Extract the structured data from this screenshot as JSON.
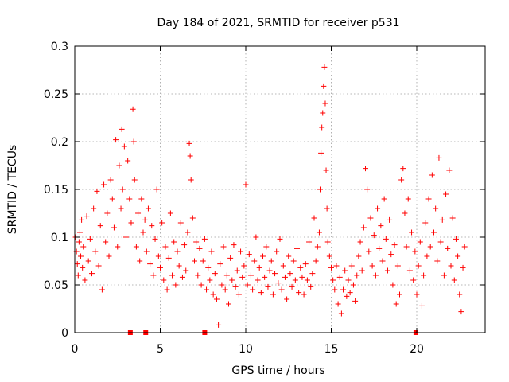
{
  "chart_data": {
    "type": "scatter",
    "title": "Day 184 of 2021, SRMTID for receiver p531",
    "xlabel": "GPS time / hours",
    "ylabel": "SRMTID / TECUs",
    "xlim": [
      0,
      24
    ],
    "ylim": [
      0,
      0.3
    ],
    "xticks": [
      0,
      5,
      10,
      15,
      20
    ],
    "xtick_labels": [
      "0",
      "5",
      "10",
      "15",
      "20"
    ],
    "yticks": [
      0,
      0.05,
      0.1,
      0.15,
      0.2,
      0.25,
      0.3
    ],
    "ytick_labels": [
      "0",
      "0.05",
      "0.1",
      "0.15",
      "0.2",
      "0.25",
      "0.3"
    ],
    "grid": true,
    "legend": "none",
    "marker": "plus",
    "color": "#ff0000",
    "series": [
      {
        "name": "SRMTID",
        "points": [
          [
            0.05,
            0.1
          ],
          [
            0.1,
            0.085
          ],
          [
            0.15,
            0.072
          ],
          [
            0.2,
            0.06
          ],
          [
            0.25,
            0.095
          ],
          [
            0.3,
            0.105
          ],
          [
            0.35,
            0.08
          ],
          [
            0.4,
            0.118
          ],
          [
            0.45,
            0.068
          ],
          [
            0.5,
            0.09
          ],
          [
            0.6,
            0.055
          ],
          [
            0.7,
            0.122
          ],
          [
            0.8,
            0.075
          ],
          [
            0.9,
            0.098
          ],
          [
            1.0,
            0.062
          ],
          [
            1.1,
            0.13
          ],
          [
            1.2,
            0.085
          ],
          [
            1.3,
            0.148
          ],
          [
            1.4,
            0.07
          ],
          [
            1.5,
            0.112
          ],
          [
            1.6,
            0.045
          ],
          [
            1.7,
            0.155
          ],
          [
            1.8,
            0.095
          ],
          [
            1.9,
            0.125
          ],
          [
            2.0,
            0.08
          ],
          [
            2.1,
            0.16
          ],
          [
            2.2,
            0.14
          ],
          [
            2.3,
            0.11
          ],
          [
            2.4,
            0.202
          ],
          [
            2.5,
            0.09
          ],
          [
            2.6,
            0.175
          ],
          [
            2.7,
            0.13
          ],
          [
            2.75,
            0.213
          ],
          [
            2.8,
            0.15
          ],
          [
            2.9,
            0.195
          ],
          [
            3.0,
            0.1
          ],
          [
            3.1,
            0.18
          ],
          [
            3.2,
            0.14
          ],
          [
            3.3,
            0.115
          ],
          [
            3.4,
            0.234
          ],
          [
            3.45,
            0.2
          ],
          [
            3.5,
            0.16
          ],
          [
            3.6,
            0.09
          ],
          [
            3.7,
            0.125
          ],
          [
            3.8,
            0.075
          ],
          [
            3.9,
            0.14
          ],
          [
            4.0,
            0.105
          ],
          [
            4.1,
            0.118
          ],
          [
            4.2,
            0.085
          ],
          [
            4.3,
            0.13
          ],
          [
            4.4,
            0.072
          ],
          [
            4.5,
            0.112
          ],
          [
            4.6,
            0.06
          ],
          [
            4.7,
            0.098
          ],
          [
            4.8,
            0.15
          ],
          [
            4.9,
            0.08
          ],
          [
            5.0,
            0.068
          ],
          [
            5.1,
            0.115
          ],
          [
            5.2,
            0.055
          ],
          [
            5.3,
            0.09
          ],
          [
            5.4,
            0.045
          ],
          [
            5.5,
            0.078
          ],
          [
            5.6,
            0.125
          ],
          [
            5.7,
            0.06
          ],
          [
            5.8,
            0.095
          ],
          [
            5.9,
            0.05
          ],
          [
            6.0,
            0.085
          ],
          [
            6.1,
            0.07
          ],
          [
            6.2,
            0.115
          ],
          [
            6.3,
            0.058
          ],
          [
            6.4,
            0.092
          ],
          [
            6.5,
            0.065
          ],
          [
            6.6,
            0.105
          ],
          [
            6.7,
            0.198
          ],
          [
            6.75,
            0.185
          ],
          [
            6.8,
            0.16
          ],
          [
            6.9,
            0.12
          ],
          [
            7.0,
            0.075
          ],
          [
            7.1,
            0.095
          ],
          [
            7.2,
            0.06
          ],
          [
            7.3,
            0.088
          ],
          [
            7.4,
            0.05
          ],
          [
            7.5,
            0.075
          ],
          [
            7.6,
            0.098
          ],
          [
            7.7,
            0.045
          ],
          [
            7.8,
            0.068
          ],
          [
            7.9,
            0.055
          ],
          [
            8.0,
            0.085
          ],
          [
            8.1,
            0.04
          ],
          [
            8.2,
            0.062
          ],
          [
            8.3,
            0.035
          ],
          [
            8.4,
            0.008
          ],
          [
            8.5,
            0.072
          ],
          [
            8.6,
            0.05
          ],
          [
            8.7,
            0.09
          ],
          [
            8.8,
            0.045
          ],
          [
            8.9,
            0.06
          ],
          [
            9.0,
            0.03
          ],
          [
            9.1,
            0.078
          ],
          [
            9.2,
            0.055
          ],
          [
            9.3,
            0.092
          ],
          [
            9.4,
            0.048
          ],
          [
            9.5,
            0.065
          ],
          [
            9.6,
            0.04
          ],
          [
            9.7,
            0.085
          ],
          [
            9.8,
            0.058
          ],
          [
            9.9,
            0.07
          ],
          [
            10.0,
            0.155
          ],
          [
            10.1,
            0.05
          ],
          [
            10.2,
            0.082
          ],
          [
            10.3,
            0.06
          ],
          [
            10.4,
            0.045
          ],
          [
            10.5,
            0.075
          ],
          [
            10.6,
            0.1
          ],
          [
            10.7,
            0.055
          ],
          [
            10.8,
            0.068
          ],
          [
            10.9,
            0.042
          ],
          [
            11.0,
            0.08
          ],
          [
            11.1,
            0.058
          ],
          [
            11.2,
            0.09
          ],
          [
            11.3,
            0.048
          ],
          [
            11.4,
            0.065
          ],
          [
            11.5,
            0.075
          ],
          [
            11.6,
            0.04
          ],
          [
            11.7,
            0.062
          ],
          [
            11.8,
            0.085
          ],
          [
            11.9,
            0.052
          ],
          [
            12.0,
            0.098
          ],
          [
            12.1,
            0.045
          ],
          [
            12.2,
            0.07
          ],
          [
            12.3,
            0.058
          ],
          [
            12.4,
            0.035
          ],
          [
            12.5,
            0.08
          ],
          [
            12.6,
            0.062
          ],
          [
            12.7,
            0.048
          ],
          [
            12.8,
            0.075
          ],
          [
            12.9,
            0.055
          ],
          [
            13.0,
            0.088
          ],
          [
            13.1,
            0.042
          ],
          [
            13.2,
            0.068
          ],
          [
            13.3,
            0.058
          ],
          [
            13.4,
            0.04
          ],
          [
            13.5,
            0.072
          ],
          [
            13.6,
            0.055
          ],
          [
            13.7,
            0.095
          ],
          [
            13.8,
            0.048
          ],
          [
            13.9,
            0.062
          ],
          [
            14.0,
            0.12
          ],
          [
            14.1,
            0.075
          ],
          [
            14.2,
            0.09
          ],
          [
            14.3,
            0.105
          ],
          [
            14.35,
            0.15
          ],
          [
            14.4,
            0.188
          ],
          [
            14.45,
            0.215
          ],
          [
            14.5,
            0.23
          ],
          [
            14.55,
            0.258
          ],
          [
            14.6,
            0.278
          ],
          [
            14.65,
            0.24
          ],
          [
            14.7,
            0.17
          ],
          [
            14.75,
            0.13
          ],
          [
            14.8,
            0.095
          ],
          [
            14.9,
            0.08
          ],
          [
            15.0,
            0.068
          ],
          [
            15.1,
            0.055
          ],
          [
            15.2,
            0.045
          ],
          [
            15.3,
            0.07
          ],
          [
            15.4,
            0.03
          ],
          [
            15.5,
            0.058
          ],
          [
            15.6,
            0.02
          ],
          [
            15.7,
            0.045
          ],
          [
            15.8,
            0.065
          ],
          [
            15.9,
            0.038
          ],
          [
            16.0,
            0.055
          ],
          [
            16.1,
            0.042
          ],
          [
            16.2,
            0.07
          ],
          [
            16.3,
            0.05
          ],
          [
            16.4,
            0.033
          ],
          [
            16.5,
            0.06
          ],
          [
            16.6,
            0.08
          ],
          [
            16.7,
            0.095
          ],
          [
            16.8,
            0.065
          ],
          [
            16.9,
            0.11
          ],
          [
            17.0,
            0.172
          ],
          [
            17.1,
            0.15
          ],
          [
            17.2,
            0.085
          ],
          [
            17.3,
            0.12
          ],
          [
            17.4,
            0.07
          ],
          [
            17.5,
            0.102
          ],
          [
            17.6,
            0.06
          ],
          [
            17.7,
            0.13
          ],
          [
            17.8,
            0.088
          ],
          [
            17.9,
            0.112
          ],
          [
            18.0,
            0.075
          ],
          [
            18.1,
            0.14
          ],
          [
            18.2,
            0.098
          ],
          [
            18.3,
            0.065
          ],
          [
            18.4,
            0.118
          ],
          [
            18.5,
            0.082
          ],
          [
            18.6,
            0.05
          ],
          [
            18.7,
            0.092
          ],
          [
            18.8,
            0.03
          ],
          [
            18.9,
            0.07
          ],
          [
            19.0,
            0.04
          ],
          [
            19.1,
            0.16
          ],
          [
            19.2,
            0.172
          ],
          [
            19.3,
            0.125
          ],
          [
            19.4,
            0.09
          ],
          [
            19.5,
            0.14
          ],
          [
            19.6,
            0.065
          ],
          [
            19.7,
            0.105
          ],
          [
            19.8,
            0.055
          ],
          [
            19.9,
            0.085
          ],
          [
            20.0,
            0.04
          ],
          [
            20.1,
            0.07
          ],
          [
            20.2,
            0.095
          ],
          [
            20.3,
            0.028
          ],
          [
            20.4,
            0.06
          ],
          [
            20.5,
            0.115
          ],
          [
            20.6,
            0.08
          ],
          [
            20.7,
            0.14
          ],
          [
            20.8,
            0.09
          ],
          [
            20.9,
            0.165
          ],
          [
            21.0,
            0.105
          ],
          [
            21.1,
            0.13
          ],
          [
            21.2,
            0.075
          ],
          [
            21.3,
            0.183
          ],
          [
            21.4,
            0.095
          ],
          [
            21.5,
            0.118
          ],
          [
            21.6,
            0.06
          ],
          [
            21.7,
            0.145
          ],
          [
            21.8,
            0.088
          ],
          [
            21.9,
            0.17
          ],
          [
            22.0,
            0.07
          ],
          [
            22.1,
            0.12
          ],
          [
            22.2,
            0.055
          ],
          [
            22.3,
            0.098
          ],
          [
            22.4,
            0.08
          ],
          [
            22.5,
            0.04
          ],
          [
            22.6,
            0.022
          ],
          [
            22.7,
            0.068
          ],
          [
            22.8,
            0.09
          ]
        ]
      }
    ],
    "gap_markers_x": [
      3.25,
      4.15,
      7.6,
      19.95
    ]
  }
}
